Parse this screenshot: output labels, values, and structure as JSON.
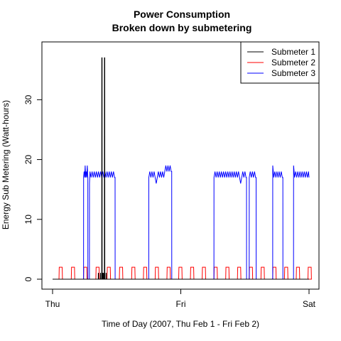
{
  "chart_data": {
    "type": "line",
    "title": "Power Consumption",
    "subtitle": "Broken down by submetering",
    "xlabel": "Time of Day (2007, Thu Feb 1 - Fri Feb 2)",
    "ylabel": "Energy Sub Metering (Watt-hours)",
    "x_ticks": [
      "Thu",
      "Fri",
      "Sat"
    ],
    "y_ticks": [
      0,
      10,
      20,
      30
    ],
    "xlim": [
      0,
      48
    ],
    "ylim": [
      0,
      38
    ],
    "x_unit": "hours from Thu 00:00",
    "legend_position": "top-right",
    "series": [
      {
        "name": "Submeter 1",
        "color": "#000000",
        "points": [
          [
            0,
            0
          ],
          [
            8.55,
            0
          ],
          [
            8.56,
            1
          ],
          [
            8.6,
            1
          ],
          [
            8.61,
            0
          ],
          [
            8.95,
            0
          ],
          [
            8.96,
            1
          ],
          [
            9.0,
            1
          ],
          [
            9.01,
            0
          ],
          [
            9.2,
            0
          ],
          [
            9.21,
            37
          ],
          [
            9.27,
            37
          ],
          [
            9.28,
            0
          ],
          [
            9.35,
            0
          ],
          [
            9.36,
            1
          ],
          [
            9.4,
            1
          ],
          [
            9.41,
            0
          ],
          [
            9.5,
            0
          ],
          [
            9.51,
            1
          ],
          [
            9.55,
            1
          ],
          [
            9.56,
            0
          ],
          [
            9.7,
            0
          ],
          [
            9.71,
            37
          ],
          [
            9.77,
            37
          ],
          [
            9.78,
            0
          ],
          [
            10.0,
            0
          ],
          [
            10.01,
            1
          ],
          [
            10.05,
            1
          ],
          [
            10.06,
            0
          ],
          [
            48,
            0
          ]
        ]
      },
      {
        "name": "Submeter 2",
        "color": "#ff0000",
        "points": [
          [
            0,
            0
          ],
          [
            48,
            0
          ]
        ],
        "pulses": {
          "starts": [
            1.2,
            3.5,
            5.8,
            8.1,
            10.2,
            12.5,
            14.8,
            17.0,
            19.2,
            21.4,
            23.6,
            25.8,
            28.0,
            30.2,
            32.4,
            34.6,
            36.8,
            39.0,
            41.2,
            43.4,
            45.6,
            47.8
          ],
          "height": 2,
          "width": 0.6
        }
      },
      {
        "name": "Submeter 3",
        "color": "#0000ff",
        "points": [
          [
            0,
            0
          ],
          [
            5.8,
            0
          ],
          [
            5.81,
            17
          ],
          [
            5.9,
            18
          ],
          [
            6.0,
            17
          ],
          [
            6.1,
            19
          ],
          [
            6.2,
            17
          ],
          [
            6.3,
            18
          ],
          [
            6.4,
            17
          ],
          [
            6.5,
            19
          ],
          [
            6.6,
            17
          ],
          [
            6.61,
            0
          ],
          [
            6.9,
            0
          ],
          [
            6.91,
            16
          ],
          [
            7.0,
            18
          ],
          [
            7.2,
            17
          ],
          [
            7.4,
            18
          ],
          [
            7.6,
            17
          ],
          [
            7.8,
            18
          ],
          [
            8.0,
            17
          ],
          [
            8.2,
            18
          ],
          [
            8.4,
            17
          ],
          [
            8.6,
            18
          ],
          [
            8.8,
            17
          ],
          [
            9.0,
            18
          ],
          [
            9.2,
            17
          ],
          [
            9.4,
            18
          ],
          [
            9.6,
            17
          ],
          [
            9.8,
            18
          ],
          [
            10.0,
            17
          ],
          [
            10.2,
            18
          ],
          [
            10.4,
            17
          ],
          [
            10.6,
            18
          ],
          [
            10.8,
            17
          ],
          [
            11.0,
            18
          ],
          [
            11.2,
            17
          ],
          [
            11.4,
            18
          ],
          [
            11.6,
            17
          ],
          [
            11.7,
            17
          ],
          [
            11.71,
            0
          ],
          [
            18.0,
            0
          ],
          [
            18.01,
            17
          ],
          [
            18.2,
            18
          ],
          [
            18.4,
            17
          ],
          [
            18.6,
            18
          ],
          [
            18.8,
            17
          ],
          [
            19.0,
            18
          ],
          [
            19.2,
            17
          ],
          [
            19.4,
            16
          ],
          [
            19.6,
            17
          ],
          [
            19.8,
            18
          ],
          [
            20.0,
            17
          ],
          [
            20.2,
            18
          ],
          [
            20.4,
            17
          ],
          [
            20.6,
            18
          ],
          [
            20.8,
            17
          ],
          [
            21.0,
            18
          ],
          [
            21.2,
            19
          ],
          [
            21.4,
            18
          ],
          [
            21.6,
            19
          ],
          [
            21.8,
            18
          ],
          [
            22.0,
            19
          ],
          [
            22.2,
            18
          ],
          [
            22.3,
            18
          ],
          [
            22.31,
            0
          ],
          [
            30.2,
            0
          ],
          [
            30.21,
            17
          ],
          [
            30.4,
            18
          ],
          [
            30.6,
            17
          ],
          [
            30.8,
            18
          ],
          [
            31.0,
            17
          ],
          [
            31.2,
            18
          ],
          [
            31.4,
            17
          ],
          [
            31.6,
            18
          ],
          [
            31.8,
            17
          ],
          [
            32.0,
            18
          ],
          [
            32.2,
            17
          ],
          [
            32.4,
            18
          ],
          [
            32.6,
            17
          ],
          [
            32.8,
            18
          ],
          [
            33.0,
            17
          ],
          [
            33.2,
            18
          ],
          [
            33.4,
            17
          ],
          [
            33.6,
            18
          ],
          [
            33.8,
            17
          ],
          [
            34.0,
            18
          ],
          [
            34.2,
            17
          ],
          [
            34.4,
            18
          ],
          [
            34.6,
            17
          ],
          [
            34.8,
            18
          ],
          [
            35.0,
            17
          ],
          [
            35.2,
            16
          ],
          [
            35.4,
            17
          ],
          [
            35.6,
            18
          ],
          [
            35.8,
            17
          ],
          [
            36.0,
            18
          ],
          [
            36.2,
            17
          ],
          [
            36.3,
            17
          ],
          [
            36.31,
            0
          ],
          [
            36.8,
            0
          ],
          [
            36.81,
            17
          ],
          [
            37.0,
            18
          ],
          [
            37.2,
            17
          ],
          [
            37.4,
            18
          ],
          [
            37.6,
            17
          ],
          [
            37.8,
            18
          ],
          [
            38.0,
            17
          ],
          [
            38.1,
            17
          ],
          [
            38.11,
            0
          ],
          [
            41.2,
            0
          ],
          [
            41.21,
            19
          ],
          [
            41.4,
            17
          ],
          [
            41.6,
            18
          ],
          [
            41.8,
            17
          ],
          [
            42.0,
            18
          ],
          [
            42.2,
            17
          ],
          [
            42.4,
            18
          ],
          [
            42.6,
            17
          ],
          [
            42.8,
            18
          ],
          [
            43.0,
            17
          ],
          [
            43.1,
            17
          ],
          [
            43.11,
            0
          ],
          [
            45.1,
            0
          ],
          [
            45.11,
            19
          ],
          [
            45.3,
            17
          ],
          [
            45.5,
            18
          ],
          [
            45.7,
            17
          ],
          [
            45.9,
            18
          ],
          [
            46.1,
            17
          ],
          [
            46.3,
            18
          ],
          [
            46.5,
            17
          ],
          [
            46.7,
            18
          ],
          [
            46.9,
            17
          ],
          [
            47.1,
            18
          ],
          [
            47.3,
            17
          ],
          [
            47.5,
            18
          ],
          [
            47.7,
            17
          ],
          [
            47.9,
            18
          ],
          [
            48,
            17
          ]
        ]
      }
    ]
  }
}
